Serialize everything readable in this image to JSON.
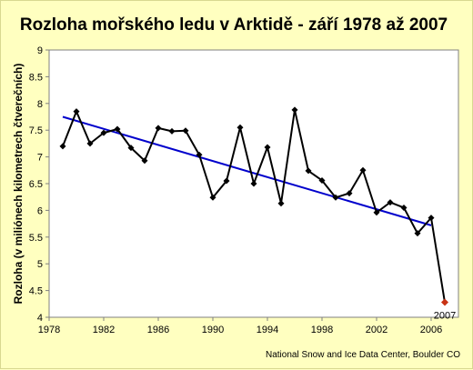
{
  "chart_data": {
    "type": "line",
    "title": "Rozloha mořského ledu v Arktidě - září 1978 až 2007",
    "ylabel": "Rozloha (v miliónech kilometrech čtverečních)",
    "xlabel": "",
    "xlim": [
      1978,
      2008
    ],
    "ylim": [
      4,
      9
    ],
    "x_ticks": [
      1978,
      1982,
      1986,
      1990,
      1994,
      1998,
      2002,
      2006
    ],
    "y_ticks": [
      4,
      4.5,
      5,
      5.5,
      6,
      6.5,
      7,
      7.5,
      8,
      8.5,
      9
    ],
    "grid": "none",
    "source": "National Snow and Ice Data Center, Boulder CO",
    "series": [
      {
        "x": [
          1979,
          1980,
          1981,
          1982,
          1983,
          1984,
          1985,
          1986,
          1987,
          1988,
          1989,
          1990,
          1991,
          1992,
          1993,
          1994,
          1995,
          1996,
          1997,
          1998,
          1999,
          2000,
          2001,
          2002,
          2003,
          2004,
          2005,
          2006
        ],
        "values": [
          7.2,
          7.85,
          7.25,
          7.45,
          7.52,
          7.17,
          6.93,
          7.54,
          7.48,
          7.49,
          7.04,
          6.24,
          6.55,
          7.55,
          6.5,
          7.18,
          6.13,
          7.88,
          6.74,
          6.56,
          6.24,
          6.32,
          6.75,
          5.96,
          6.15,
          6.05,
          5.57,
          5.86
        ],
        "color": "#000000"
      }
    ],
    "trend": {
      "x": [
        1979,
        2006
      ],
      "values": [
        7.75,
        5.72
      ],
      "color": "#0000cc"
    },
    "highlight": {
      "x": 2007,
      "value": 4.28,
      "label": "2007",
      "color": "#c83214"
    }
  }
}
